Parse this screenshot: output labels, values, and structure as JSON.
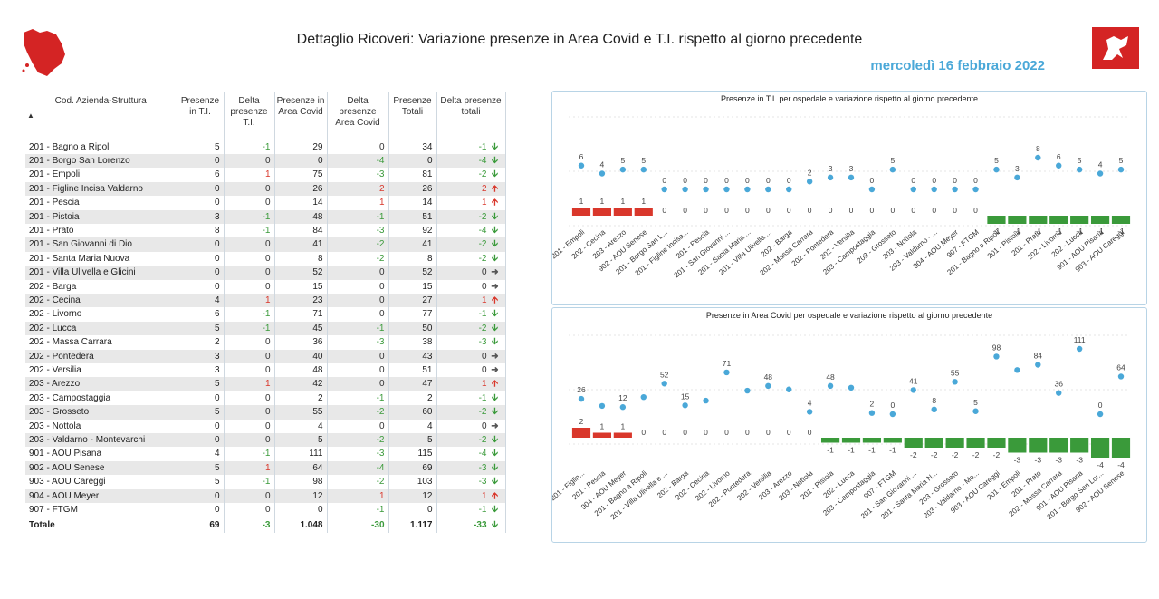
{
  "header": {
    "title": "Dettaglio Ricoveri: Variazione presenze in Area Covid e T.I. rispetto al giorno precedente",
    "date": "mercoledì 16 febbraio 2022"
  },
  "colors": {
    "accent": "#4aa8d8",
    "dot": "#4aa8d8",
    "increase": "#d9372b",
    "decrease": "#3a9a3a",
    "flat": "#555555"
  },
  "table": {
    "columns": [
      "Cod. Azienda-Struttura",
      "Presenze in T.I.",
      "Delta presenze T.I.",
      "Presenze in Area Covid",
      "Delta presenze Area Covid",
      "Presenze Totali",
      "Delta presenze totali"
    ],
    "sort_indicator": "▲",
    "rows": [
      [
        "201 - Bagno a Ripoli",
        "5",
        "-1",
        "29",
        "0",
        "34",
        "-1"
      ],
      [
        "201 - Borgo San Lorenzo",
        "0",
        "0",
        "0",
        "-4",
        "0",
        "-4"
      ],
      [
        "201 - Empoli",
        "6",
        "1",
        "75",
        "-3",
        "81",
        "-2"
      ],
      [
        "201 - Figline Incisa Valdarno",
        "0",
        "0",
        "26",
        "2",
        "26",
        "2"
      ],
      [
        "201 - Pescia",
        "0",
        "0",
        "14",
        "1",
        "14",
        "1"
      ],
      [
        "201 - Pistoia",
        "3",
        "-1",
        "48",
        "-1",
        "51",
        "-2"
      ],
      [
        "201 - Prato",
        "8",
        "-1",
        "84",
        "-3",
        "92",
        "-4"
      ],
      [
        "201 - San Giovanni di Dio",
        "0",
        "0",
        "41",
        "-2",
        "41",
        "-2"
      ],
      [
        "201 - Santa Maria Nuova",
        "0",
        "0",
        "8",
        "-2",
        "8",
        "-2"
      ],
      [
        "201 - Villa Ulivella e Glicini",
        "0",
        "0",
        "52",
        "0",
        "52",
        "0"
      ],
      [
        "202 - Barga",
        "0",
        "0",
        "15",
        "0",
        "15",
        "0"
      ],
      [
        "202 - Cecina",
        "4",
        "1",
        "23",
        "0",
        "27",
        "1"
      ],
      [
        "202 - Livorno",
        "6",
        "-1",
        "71",
        "0",
        "77",
        "-1"
      ],
      [
        "202 - Lucca",
        "5",
        "-1",
        "45",
        "-1",
        "50",
        "-2"
      ],
      [
        "202 - Massa Carrara",
        "2",
        "0",
        "36",
        "-3",
        "38",
        "-3"
      ],
      [
        "202 - Pontedera",
        "3",
        "0",
        "40",
        "0",
        "43",
        "0"
      ],
      [
        "202 - Versilia",
        "3",
        "0",
        "48",
        "0",
        "51",
        "0"
      ],
      [
        "203 - Arezzo",
        "5",
        "1",
        "42",
        "0",
        "47",
        "1"
      ],
      [
        "203 - Campostaggia",
        "0",
        "0",
        "2",
        "-1",
        "2",
        "-1"
      ],
      [
        "203 - Grosseto",
        "5",
        "0",
        "55",
        "-2",
        "60",
        "-2"
      ],
      [
        "203 - Nottola",
        "0",
        "0",
        "4",
        "0",
        "4",
        "0"
      ],
      [
        "203 - Valdarno - Montevarchi",
        "0",
        "0",
        "5",
        "-2",
        "5",
        "-2"
      ],
      [
        "901 - AOU Pisana",
        "4",
        "-1",
        "111",
        "-3",
        "115",
        "-4"
      ],
      [
        "902 - AOU Senese",
        "5",
        "1",
        "64",
        "-4",
        "69",
        "-3"
      ],
      [
        "903 - AOU Careggi",
        "5",
        "-1",
        "98",
        "-2",
        "103",
        "-3"
      ],
      [
        "904 - AOU Meyer",
        "0",
        "0",
        "12",
        "1",
        "12",
        "1"
      ],
      [
        "907 - FTGM",
        "0",
        "0",
        "0",
        "-1",
        "0",
        "-1"
      ]
    ],
    "total": [
      "Totale",
      "69",
      "-3",
      "1.048",
      "-30",
      "1.117",
      "-33"
    ]
  },
  "chart_data": [
    {
      "type": "scatter",
      "title": "Presenze in T.I. per ospedale e variazione rispetto al giorno precedente",
      "categories": [
        "201 - Empoli",
        "202 - Cecina",
        "203 - Arezzo",
        "902 - AOU Senese",
        "201 - Borgo San L...",
        "201 - Figline Incisa...",
        "201 - Pescia",
        "201 - San Giovanni ...",
        "201 - Santa Maria ...",
        "201 - Villa Ulivella ...",
        "202 - Barga",
        "202 - Massa Carrara",
        "202 - Pontedera",
        "202 - Versilia",
        "203 - Campostaggia",
        "203 - Grosseto",
        "203 - Nottola",
        "203 - Valdarno - ...",
        "904 - AOU Meyer",
        "907 - FTGM",
        "201 - Bagno a Ripoli",
        "201 - Pistoia",
        "201 - Prato",
        "202 - Livorno",
        "202 - Lucca",
        "901 - AOU Pisana",
        "903 - AOU Careggi"
      ],
      "series": [
        {
          "name": "Presenze in T.I.",
          "values": [
            6,
            4,
            5,
            5,
            0,
            0,
            0,
            0,
            0,
            0,
            0,
            2,
            3,
            3,
            0,
            5,
            0,
            0,
            0,
            0,
            5,
            3,
            8,
            6,
            5,
            4,
            5
          ]
        },
        {
          "name": "Delta presenze T.I.",
          "values": [
            1,
            1,
            1,
            1,
            0,
            0,
            0,
            0,
            0,
            0,
            0,
            0,
            0,
            0,
            0,
            0,
            0,
            0,
            0,
            0,
            -1,
            -1,
            -1,
            -1,
            -1,
            -1,
            -1
          ]
        }
      ]
    },
    {
      "type": "scatter",
      "title": "Presenze in Area Covid per ospedale e variazione rispetto al giorno precedente",
      "categories": [
        "201 - Figlin...",
        "201 - Pescia",
        "904 - AOU Meyer",
        "201 - Bagno a Ripoli",
        "201 - Villa Ulivella e ...",
        "202 - Barga",
        "202 - Cecina",
        "202 - Livorno",
        "202 - Pontedera",
        "202 - Versilia",
        "203 - Arezzo",
        "203 - Nottola",
        "201 - Pistoia",
        "202 - Lucca",
        "203 - Campostaggia",
        "907 - FTGM",
        "201 - San Giovanni ...",
        "201 - Santa Maria N...",
        "203 - Grosseto",
        "203 - Valdarno - Mo...",
        "903 - AOU Careggi",
        "201 - Empoli",
        "201 - Prato",
        "202 - Massa Carrara",
        "901 - AOU Pisana",
        "201 - Borgo San Lor...",
        "902 - AOU Senese"
      ],
      "series": [
        {
          "name": "Presenze in Area Covid",
          "values": [
            26,
            14,
            12,
            29,
            52,
            15,
            23,
            71,
            40,
            48,
            42,
            4,
            48,
            45,
            2,
            0,
            41,
            8,
            55,
            5,
            98,
            75,
            84,
            36,
            111,
            0,
            64
          ]
        },
        {
          "name": "Delta presenze Area Covid",
          "values": [
            2,
            1,
            1,
            0,
            0,
            0,
            0,
            0,
            0,
            0,
            0,
            0,
            -1,
            -1,
            -1,
            -1,
            -2,
            -2,
            -2,
            -2,
            -2,
            -3,
            -3,
            -3,
            -3,
            -4,
            -4
          ]
        }
      ],
      "point_labels_shown": [
        26,
        null,
        12,
        null,
        52,
        15,
        null,
        71,
        null,
        48,
        null,
        4,
        48,
        null,
        2,
        0,
        41,
        8,
        55,
        5,
        98,
        null,
        84,
        36,
        111,
        0,
        64
      ]
    }
  ]
}
